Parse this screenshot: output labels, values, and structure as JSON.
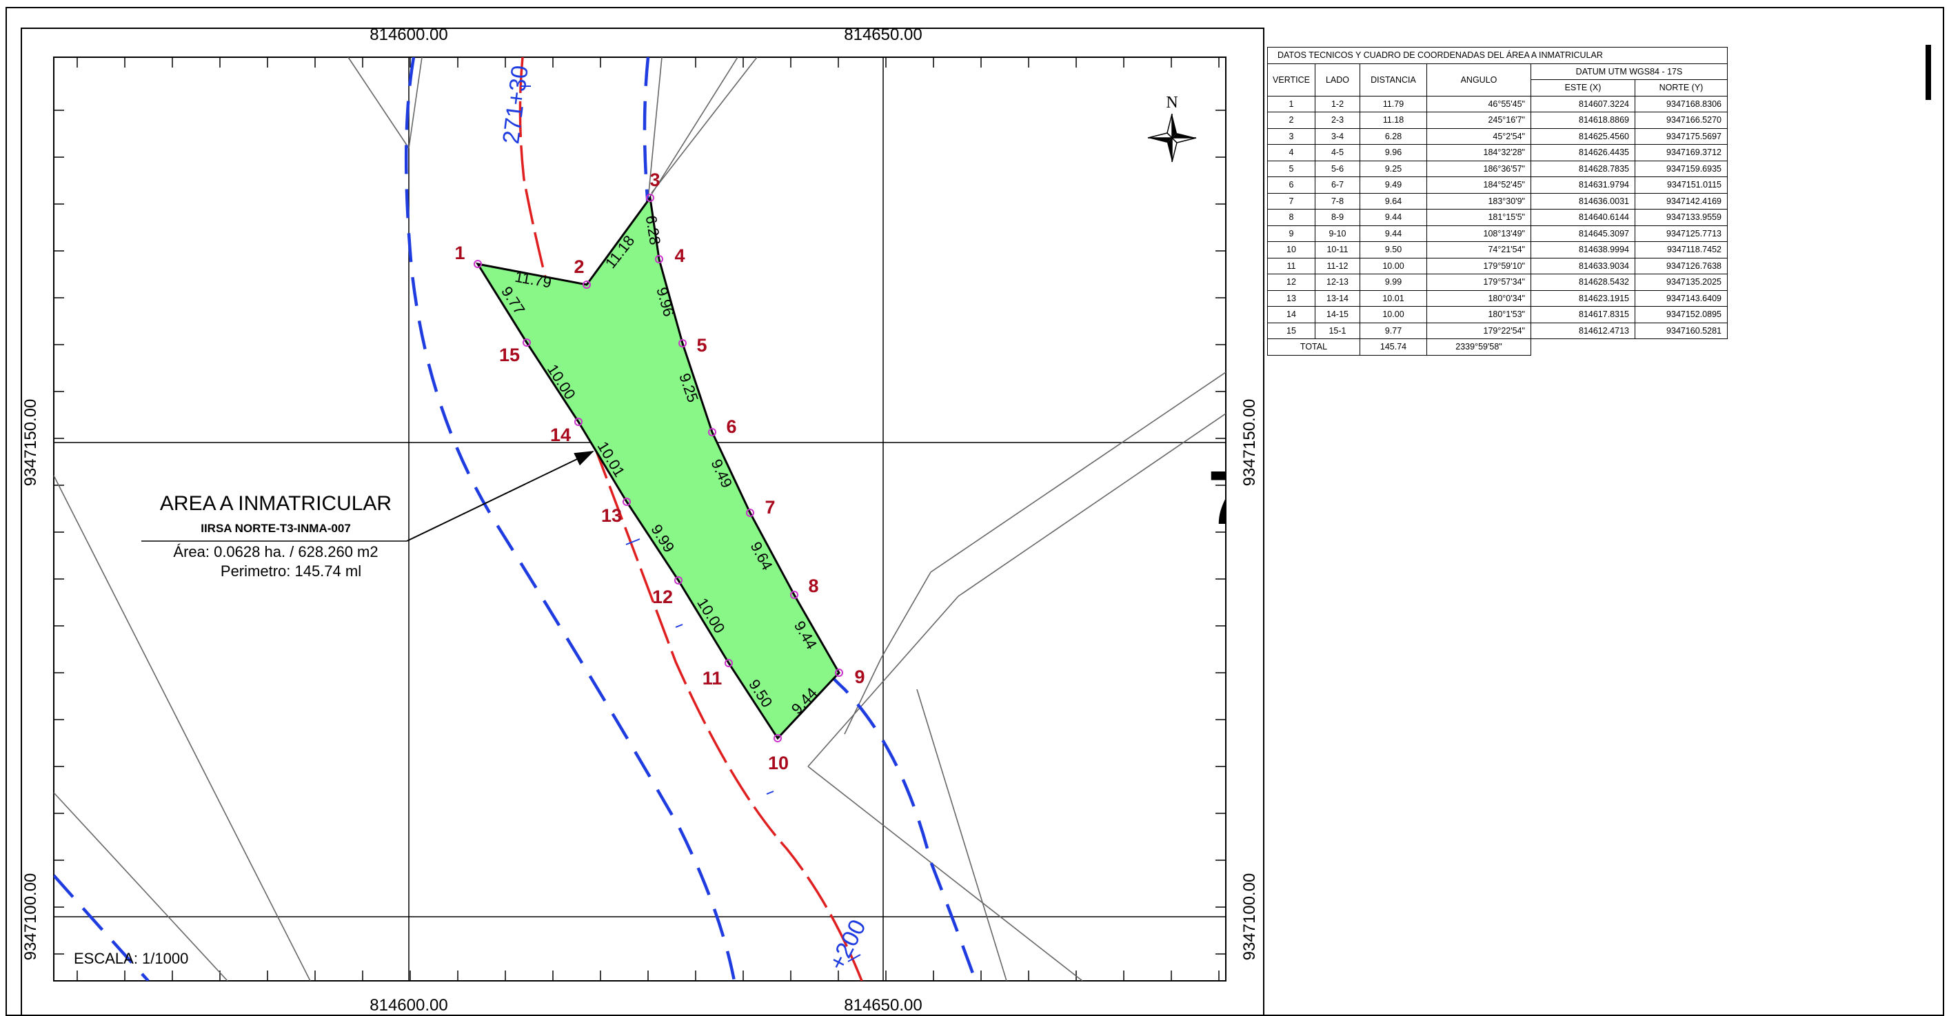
{
  "map": {
    "scale": "ESCALA: 1/1000",
    "grid_labels_x": [
      "814600.00",
      "814650.00"
    ],
    "grid_labels_y": [
      "9347150.00",
      "9347100.00"
    ],
    "north_label": "N",
    "road_labels": [
      "271+30",
      "+200"
    ],
    "area_title": "AREA A INMATRICULAR",
    "area_code": "IIRSA NORTE-T3-INMA-007",
    "area_value": "Área: 0.0628 ha. / 628.260 m2",
    "perimeter": "Perimetro: 145.74 ml",
    "polygon_fill": "#88f788",
    "road_red": "#e02020",
    "road_blue": "#1f3ce0",
    "label_red": "#aa0a1e",
    "vertices": [
      "1",
      "2",
      "3",
      "4",
      "5",
      "6",
      "7",
      "8",
      "9",
      "10",
      "11",
      "12",
      "13",
      "14",
      "15"
    ],
    "side_lengths": [
      "11.79",
      "11.18",
      "6.28",
      "9.96",
      "9.25",
      "9.49",
      "9.64",
      "9.44",
      "9.44",
      "9.50",
      "10.00",
      "9.99",
      "10.01",
      "10.00",
      "9.77"
    ]
  },
  "table": {
    "title": "DATOS TECNICOS Y CUADRO DE COORDENADAS DEL ÁREA A INMATRICULAR",
    "headers": {
      "vertice": "VERTICE",
      "lado": "LADO",
      "distancia": "DISTANCIA",
      "angulo": "ANGULO",
      "datum": "DATUM UTM WGS84 - 17S",
      "este": "ESTE (X)",
      "norte": "NORTE (Y)"
    },
    "rows": [
      {
        "v": "1",
        "lado": "1-2",
        "dist": "11.79",
        "ang": "46°55'45\"",
        "este": "814607.3224",
        "norte": "9347168.8306"
      },
      {
        "v": "2",
        "lado": "2-3",
        "dist": "11.18",
        "ang": "245°16'7\"",
        "este": "814618.8869",
        "norte": "9347166.5270"
      },
      {
        "v": "3",
        "lado": "3-4",
        "dist": "6.28",
        "ang": "45°2'54\"",
        "este": "814625.4560",
        "norte": "9347175.5697"
      },
      {
        "v": "4",
        "lado": "4-5",
        "dist": "9.96",
        "ang": "184°32'28\"",
        "este": "814626.4435",
        "norte": "9347169.3712"
      },
      {
        "v": "5",
        "lado": "5-6",
        "dist": "9.25",
        "ang": "186°36'57\"",
        "este": "814628.7835",
        "norte": "9347159.6935"
      },
      {
        "v": "6",
        "lado": "6-7",
        "dist": "9.49",
        "ang": "184°52'45\"",
        "este": "814631.9794",
        "norte": "9347151.0115"
      },
      {
        "v": "7",
        "lado": "7-8",
        "dist": "9.64",
        "ang": "183°30'9\"",
        "este": "814636.0031",
        "norte": "9347142.4169"
      },
      {
        "v": "8",
        "lado": "8-9",
        "dist": "9.44",
        "ang": "181°15'5\"",
        "este": "814640.6144",
        "norte": "9347133.9559"
      },
      {
        "v": "9",
        "lado": "9-10",
        "dist": "9.44",
        "ang": "108°13'49\"",
        "este": "814645.3097",
        "norte": "9347125.7713"
      },
      {
        "v": "10",
        "lado": "10-11",
        "dist": "9.50",
        "ang": "74°21'54\"",
        "este": "814638.9994",
        "norte": "9347118.7452"
      },
      {
        "v": "11",
        "lado": "11-12",
        "dist": "10.00",
        "ang": "179°59'10\"",
        "este": "814633.9034",
        "norte": "9347126.7638"
      },
      {
        "v": "12",
        "lado": "12-13",
        "dist": "9.99",
        "ang": "179°57'34\"",
        "este": "814628.5432",
        "norte": "9347135.2025"
      },
      {
        "v": "13",
        "lado": "13-14",
        "dist": "10.01",
        "ang": "180°0'34\"",
        "este": "814623.1915",
        "norte": "9347143.6409"
      },
      {
        "v": "14",
        "lado": "14-15",
        "dist": "10.00",
        "ang": "180°1'53\"",
        "este": "814617.8315",
        "norte": "9347152.0895"
      },
      {
        "v": "15",
        "lado": "15-1",
        "dist": "9.77",
        "ang": "179°22'54\"",
        "este": "814612.4713",
        "norte": "9347160.5281"
      }
    ],
    "total": {
      "label": "TOTAL",
      "dist": "145.74",
      "ang": "2339°59'58\""
    }
  }
}
